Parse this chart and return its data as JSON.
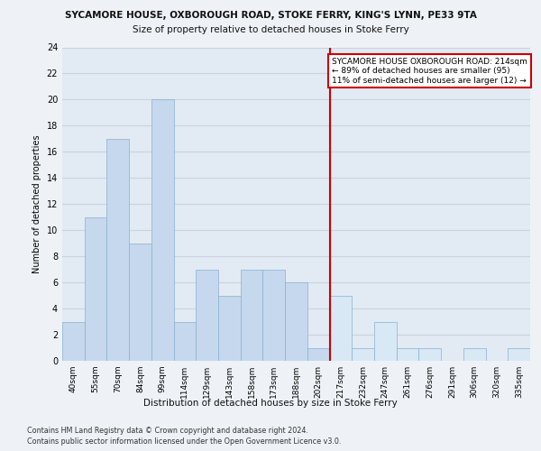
{
  "title_line1": "SYCAMORE HOUSE, OXBOROUGH ROAD, STOKE FERRY, KING'S LYNN, PE33 9TA",
  "title_line2": "Size of property relative to detached houses in Stoke Ferry",
  "xlabel": "Distribution of detached houses by size in Stoke Ferry",
  "ylabel": "Number of detached properties",
  "categories": [
    "40sqm",
    "55sqm",
    "70sqm",
    "84sqm",
    "99sqm",
    "114sqm",
    "129sqm",
    "143sqm",
    "158sqm",
    "173sqm",
    "188sqm",
    "202sqm",
    "217sqm",
    "232sqm",
    "247sqm",
    "261sqm",
    "276sqm",
    "291sqm",
    "306sqm",
    "320sqm",
    "335sqm"
  ],
  "values": [
    3,
    11,
    17,
    9,
    20,
    3,
    7,
    5,
    7,
    7,
    6,
    1,
    5,
    1,
    3,
    1,
    1,
    0,
    1,
    0,
    1
  ],
  "bar_color_left": "#c5d8ee",
  "bar_color_right": "#d8e8f5",
  "bar_edge_color": "#8ab0d0",
  "highlight_index": 12,
  "annotation_title": "SYCAMORE HOUSE OXBOROUGH ROAD: 214sqm",
  "annotation_line1": "← 89% of detached houses are smaller (95)",
  "annotation_line2": "11% of semi-detached houses are larger (12) →",
  "ylim": [
    0,
    24
  ],
  "yticks": [
    0,
    2,
    4,
    6,
    8,
    10,
    12,
    14,
    16,
    18,
    20,
    22,
    24
  ],
  "footer1": "Contains HM Land Registry data © Crown copyright and database right 2024.",
  "footer2": "Contains public sector information licensed under the Open Government Licence v3.0.",
  "bg_color": "#eef2f7",
  "plot_bg_color": "#e2eaf3",
  "grid_color": "#c8d4e0"
}
